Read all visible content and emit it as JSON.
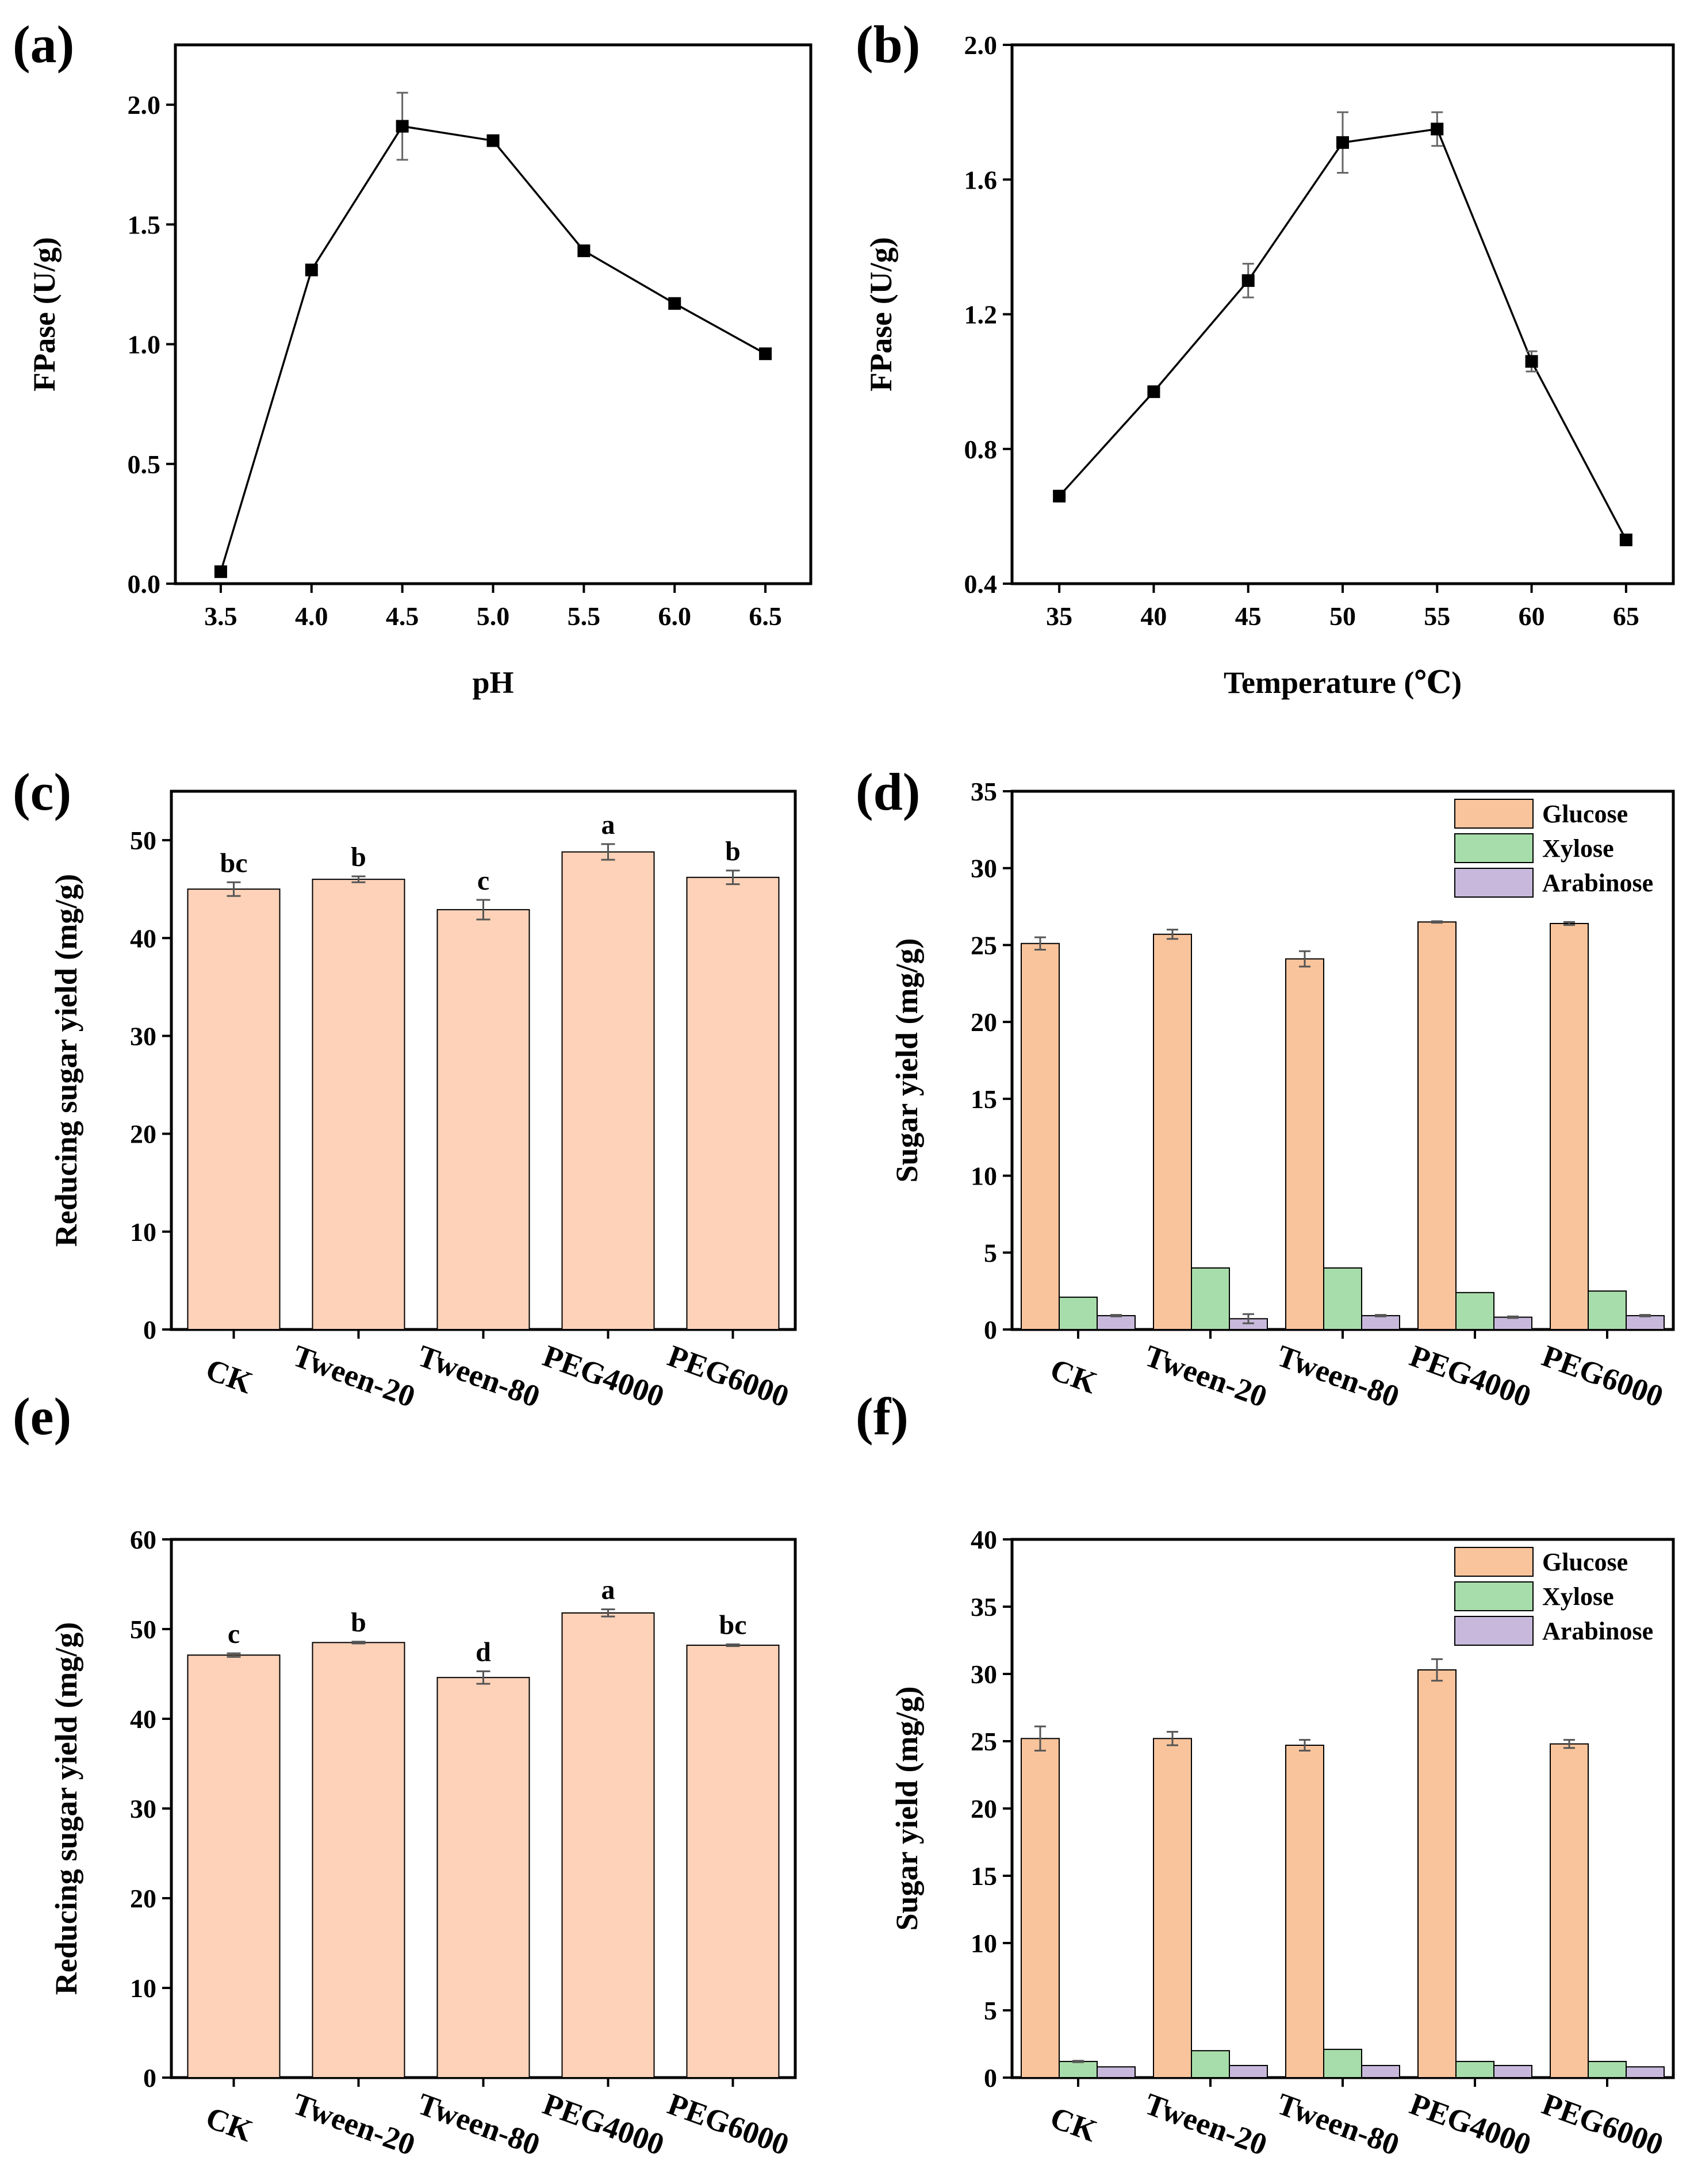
{
  "colors": {
    "bar_single": "#fdd2b8",
    "glucose": "#f9c49c",
    "xylose": "#a7ddaa",
    "arabinose": "#c8b9dc",
    "line": "#000000"
  },
  "chart_data": [
    {
      "id": "a",
      "panel_label": "(a)",
      "type": "line",
      "x": [
        3.5,
        4.0,
        4.5,
        5.0,
        5.5,
        6.0,
        6.5
      ],
      "y": [
        0.05,
        1.31,
        1.91,
        1.85,
        1.39,
        1.17,
        0.96
      ],
      "err": [
        0.0,
        0.02,
        0.14,
        0.02,
        0.02,
        0.01,
        0.01
      ],
      "xlabel": "pH",
      "ylabel": "FPase (U/g)",
      "xlim": [
        3.25,
        6.75
      ],
      "ylim": [
        0.0,
        2.25
      ],
      "xticks": [
        "3.5",
        "4.0",
        "4.5",
        "5.0",
        "5.5",
        "6.0",
        "6.5"
      ],
      "yticks": [
        "0.0",
        "0.5",
        "1.0",
        "1.5",
        "2.0"
      ]
    },
    {
      "id": "b",
      "panel_label": "(b)",
      "type": "line",
      "x": [
        35,
        40,
        45,
        50,
        55,
        60,
        65
      ],
      "y": [
        0.66,
        0.97,
        1.3,
        1.71,
        1.75,
        1.06,
        0.53
      ],
      "err": [
        0.0,
        0.01,
        0.05,
        0.09,
        0.05,
        0.03,
        0.01
      ],
      "xlabel": "Temperature (℃)",
      "ylabel": "FPase (U/g)",
      "xlim": [
        32.5,
        67.5
      ],
      "ylim": [
        0.4,
        2.0
      ],
      "xticks": [
        "35",
        "40",
        "45",
        "50",
        "55",
        "60",
        "65"
      ],
      "yticks": [
        "0.4",
        "0.8",
        "1.2",
        "1.6",
        "2.0"
      ]
    },
    {
      "id": "c",
      "panel_label": "(c)",
      "type": "bar",
      "categories": [
        "CK",
        "Tween-20",
        "Tween-80",
        "PEG4000",
        "PEG6000"
      ],
      "values": [
        45.0,
        46.0,
        42.9,
        48.8,
        46.2
      ],
      "err": [
        0.7,
        0.3,
        1.0,
        0.8,
        0.7
      ],
      "significance": [
        "bc",
        "b",
        "c",
        "a",
        "b"
      ],
      "xlabel": "",
      "ylabel": "Reducing sugar yield (mg/g)",
      "ylim": [
        0,
        55
      ],
      "yticks": [
        "0",
        "10",
        "20",
        "30",
        "40",
        "50"
      ]
    },
    {
      "id": "d",
      "panel_label": "(d)",
      "type": "bar",
      "categories": [
        "CK",
        "Tween-20",
        "Tween-80",
        "PEG4000",
        "PEG6000"
      ],
      "series": [
        {
          "name": "Glucose",
          "values": [
            25.1,
            25.7,
            24.1,
            26.5,
            26.4
          ],
          "err": [
            0.4,
            0.3,
            0.5,
            0.05,
            0.1
          ]
        },
        {
          "name": "Xylose",
          "values": [
            2.1,
            4.0,
            4.0,
            2.4,
            2.5
          ],
          "err": [
            0.0,
            0.0,
            0.0,
            0.0,
            0.0
          ]
        },
        {
          "name": "Arabinose",
          "values": [
            0.9,
            0.7,
            0.9,
            0.8,
            0.9
          ],
          "err": [
            0.05,
            0.3,
            0.05,
            0.05,
            0.05
          ]
        }
      ],
      "xlabel": "",
      "ylabel": "Sugar yield (mg/g)",
      "ylim": [
        0,
        35
      ],
      "yticks": [
        "0",
        "5",
        "10",
        "15",
        "20",
        "25",
        "30",
        "35"
      ],
      "legend": "top-right"
    },
    {
      "id": "e",
      "panel_label": "(e)",
      "type": "bar",
      "categories": [
        "CK",
        "Tween-20",
        "Tween-80",
        "PEG4000",
        "PEG6000"
      ],
      "values": [
        47.1,
        48.5,
        44.6,
        51.8,
        48.2
      ],
      "err": [
        0.2,
        0.1,
        0.7,
        0.4,
        0.1
      ],
      "significance": [
        "c",
        "b",
        "d",
        "a",
        "bc"
      ],
      "xlabel": "",
      "ylabel": "Reducing sugar yield (mg/g)",
      "ylim": [
        0,
        60
      ],
      "yticks": [
        "0",
        "10",
        "20",
        "30",
        "40",
        "50",
        "60"
      ]
    },
    {
      "id": "f",
      "panel_label": "(f)",
      "type": "bar",
      "categories": [
        "CK",
        "Tween-20",
        "Tween-80",
        "PEG4000",
        "PEG6000"
      ],
      "series": [
        {
          "name": "Glucose",
          "values": [
            25.2,
            25.2,
            24.7,
            30.3,
            24.8
          ],
          "err": [
            0.9,
            0.5,
            0.4,
            0.8,
            0.3
          ]
        },
        {
          "name": "Xylose",
          "values": [
            1.2,
            2.0,
            2.1,
            1.2,
            1.2
          ],
          "err": [
            0.05,
            0.0,
            0.0,
            0.0,
            0.0
          ]
        },
        {
          "name": "Arabinose",
          "values": [
            0.8,
            0.9,
            0.9,
            0.9,
            0.8
          ],
          "err": [
            0.0,
            0.0,
            0.0,
            0.0,
            0.0
          ]
        }
      ],
      "xlabel": "",
      "ylabel": "Sugar yield (mg/g)",
      "ylim": [
        0,
        40
      ],
      "yticks": [
        "0",
        "5",
        "10",
        "15",
        "20",
        "25",
        "30",
        "35",
        "40"
      ],
      "legend": "top-right"
    }
  ]
}
